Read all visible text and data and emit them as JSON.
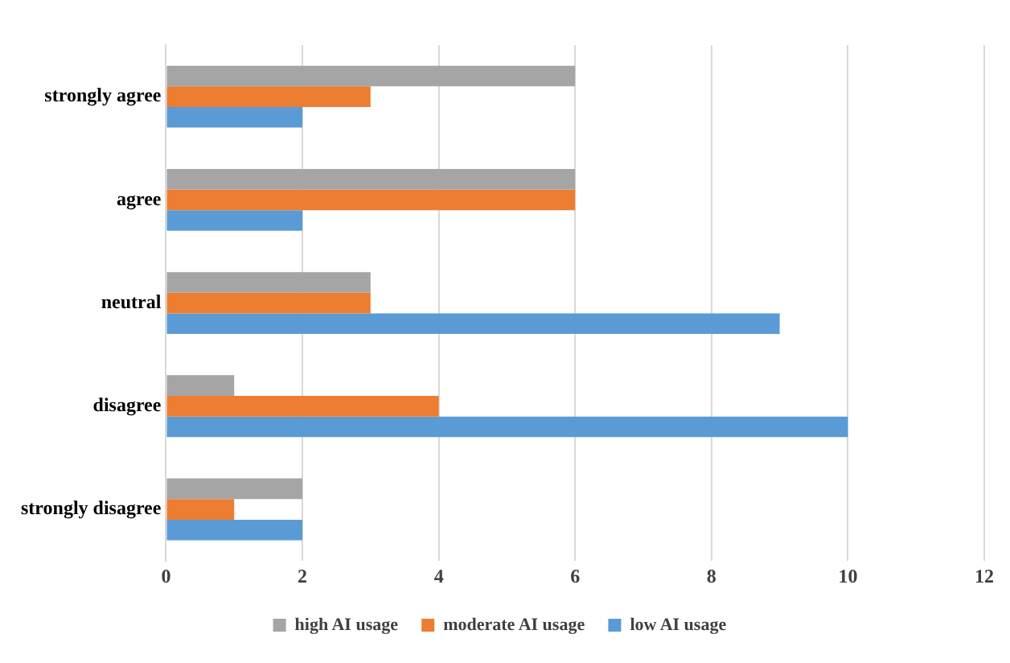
{
  "chart_data": {
    "type": "bar",
    "orientation": "horizontal",
    "categories": [
      "strongly agree",
      "agree",
      "neutral",
      "disagree",
      "strongly disagree"
    ],
    "series": [
      {
        "name": "high AI usage",
        "color": "#a5a5a5",
        "values": [
          6,
          6,
          3,
          1,
          2
        ]
      },
      {
        "name": "moderate AI usage",
        "color": "#ed7d31",
        "values": [
          3,
          6,
          3,
          4,
          1
        ]
      },
      {
        "name": "low AI usage",
        "color": "#5b9bd5",
        "values": [
          2,
          2,
          9,
          10,
          2
        ]
      }
    ],
    "xlim": [
      0,
      12
    ],
    "xticks": [
      0,
      2,
      4,
      6,
      8,
      10,
      12
    ],
    "grid": "x",
    "legend": "bottom"
  }
}
